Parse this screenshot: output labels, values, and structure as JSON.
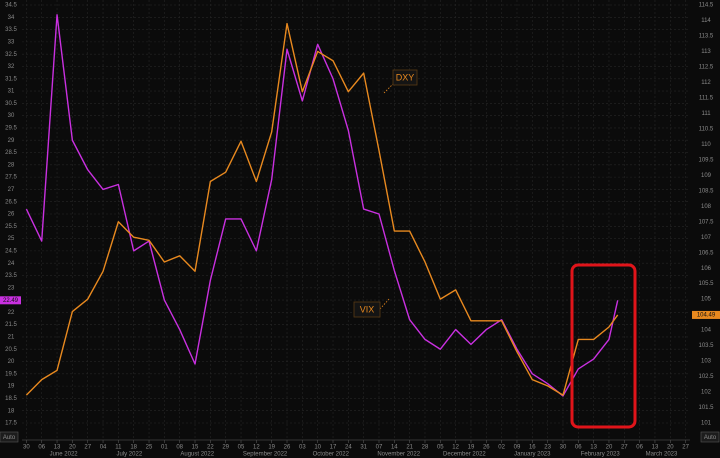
{
  "chart_data": {
    "type": "line",
    "xlim": [
      "2022-05-28",
      "2023-03-29"
    ],
    "ylim": [
      17.5,
      34.5
    ],
    "y2lim": [
      101,
      114.5
    ],
    "yticks": [
      17.5,
      18,
      18.5,
      19,
      19.5,
      20,
      20.5,
      21,
      21.5,
      22,
      22.5,
      23,
      23.5,
      24,
      24.5,
      25,
      25.5,
      26,
      26.5,
      27,
      27.5,
      28,
      28.5,
      29,
      29.5,
      30,
      30.5,
      31,
      31.5,
      32,
      32.5,
      33,
      33.5,
      34,
      34.5
    ],
    "y2ticks": [
      101,
      101.5,
      102,
      102.5,
      103,
      103.5,
      104,
      104.5,
      105,
      105.5,
      106,
      106.5,
      107,
      107.5,
      108,
      108.5,
      109,
      109.5,
      110,
      110.5,
      111,
      111.5,
      112,
      112.5,
      113,
      113.5,
      114,
      114.5
    ],
    "xticks": [
      {
        "value": "2022-05-30",
        "label": "30"
      },
      {
        "value": "2022-06-06",
        "label": "06"
      },
      {
        "value": "2022-06-13",
        "label": "13"
      },
      {
        "value": "2022-06-20",
        "label": "20"
      },
      {
        "value": "2022-06-27",
        "label": "27"
      },
      {
        "value": "2022-07-04",
        "label": "04"
      },
      {
        "value": "2022-07-11",
        "label": "11"
      },
      {
        "value": "2022-07-18",
        "label": "18"
      },
      {
        "value": "2022-07-25",
        "label": "25"
      },
      {
        "value": "2022-08-01",
        "label": "01"
      },
      {
        "value": "2022-08-08",
        "label": "08"
      },
      {
        "value": "2022-08-15",
        "label": "15"
      },
      {
        "value": "2022-08-22",
        "label": "22"
      },
      {
        "value": "2022-08-29",
        "label": "29"
      },
      {
        "value": "2022-09-05",
        "label": "05"
      },
      {
        "value": "2022-09-12",
        "label": "12"
      },
      {
        "value": "2022-09-19",
        "label": "19"
      },
      {
        "value": "2022-09-26",
        "label": "26"
      },
      {
        "value": "2022-10-03",
        "label": "03"
      },
      {
        "value": "2022-10-10",
        "label": "10"
      },
      {
        "value": "2022-10-17",
        "label": "17"
      },
      {
        "value": "2022-10-24",
        "label": "24"
      },
      {
        "value": "2022-10-31",
        "label": "31"
      },
      {
        "value": "2022-11-07",
        "label": "07"
      },
      {
        "value": "2022-11-14",
        "label": "14"
      },
      {
        "value": "2022-11-21",
        "label": "21"
      },
      {
        "value": "2022-11-28",
        "label": "28"
      },
      {
        "value": "2022-12-05",
        "label": "05"
      },
      {
        "value": "2022-12-12",
        "label": "12"
      },
      {
        "value": "2022-12-19",
        "label": "19"
      },
      {
        "value": "2022-12-26",
        "label": "26"
      },
      {
        "value": "2023-01-02",
        "label": "02"
      },
      {
        "value": "2023-01-09",
        "label": "09"
      },
      {
        "value": "2023-01-16",
        "label": "16"
      },
      {
        "value": "2023-01-23",
        "label": "23"
      },
      {
        "value": "2023-01-30",
        "label": "30"
      },
      {
        "value": "2023-02-06",
        "label": "06"
      },
      {
        "value": "2023-02-13",
        "label": "13"
      },
      {
        "value": "2023-02-20",
        "label": "20"
      },
      {
        "value": "2023-02-27",
        "label": "27"
      },
      {
        "value": "2023-03-06",
        "label": "06"
      },
      {
        "value": "2023-03-13",
        "label": "13"
      },
      {
        "value": "2023-03-20",
        "label": "20"
      },
      {
        "value": "2023-03-27",
        "label": "27"
      }
    ],
    "month_labels": [
      {
        "value": "2022-06-01",
        "label": "June 2022"
      },
      {
        "value": "2022-07-01",
        "label": "July 2022"
      },
      {
        "value": "2022-08-01",
        "label": "August 2022"
      },
      {
        "value": "2022-09-01",
        "label": "September 2022"
      },
      {
        "value": "2022-10-01",
        "label": "October 2022"
      },
      {
        "value": "2022-11-01",
        "label": "November 2022"
      },
      {
        "value": "2022-12-01",
        "label": "December 2022"
      },
      {
        "value": "2023-01-01",
        "label": "January 2023"
      },
      {
        "value": "2023-02-01",
        "label": "February 2023"
      },
      {
        "value": "2023-03-01",
        "label": "March 2023"
      }
    ],
    "x": [
      "2022-05-30",
      "2022-06-06",
      "2022-06-13",
      "2022-06-20",
      "2022-06-27",
      "2022-07-04",
      "2022-07-11",
      "2022-07-18",
      "2022-07-25",
      "2022-08-01",
      "2022-08-08",
      "2022-08-15",
      "2022-08-22",
      "2022-08-29",
      "2022-09-05",
      "2022-09-12",
      "2022-09-19",
      "2022-09-26",
      "2022-10-03",
      "2022-10-10",
      "2022-10-17",
      "2022-10-24",
      "2022-10-31",
      "2022-11-07",
      "2022-11-14",
      "2022-11-21",
      "2022-11-28",
      "2022-12-05",
      "2022-12-12",
      "2022-12-19",
      "2022-12-26",
      "2023-01-02",
      "2023-01-09",
      "2023-01-16",
      "2023-01-23",
      "2023-01-30",
      "2023-02-06",
      "2023-02-13",
      "2023-02-20",
      "2023-02-24"
    ],
    "series": [
      {
        "name": "VIX",
        "color": "#c930e0",
        "axis": "y",
        "values": [
          26.2,
          24.9,
          34.1,
          29.0,
          27.8,
          27.0,
          27.2,
          24.5,
          24.9,
          22.5,
          21.3,
          19.9,
          23.3,
          25.8,
          25.8,
          24.5,
          27.4,
          32.7,
          30.6,
          32.9,
          31.5,
          29.4,
          26.2,
          26.0,
          23.7,
          21.7,
          20.9,
          20.5,
          21.3,
          20.7,
          21.3,
          21.7,
          20.5,
          19.5,
          19.1,
          18.6,
          19.7,
          20.1,
          20.9,
          22.49
        ]
      },
      {
        "name": "DXY",
        "color": "#e8891f",
        "axis": "y2",
        "values": [
          101.9,
          102.4,
          102.7,
          104.6,
          105.0,
          105.9,
          107.5,
          107.0,
          106.9,
          106.2,
          106.4,
          105.9,
          108.8,
          109.1,
          110.1,
          108.8,
          110.4,
          113.9,
          111.7,
          113.0,
          112.7,
          111.7,
          112.3,
          109.8,
          107.2,
          107.2,
          106.2,
          105.0,
          105.3,
          104.3,
          104.3,
          104.3,
          103.3,
          102.4,
          102.2,
          101.9,
          103.7,
          103.7,
          104.1,
          104.49
        ]
      }
    ],
    "grid": true,
    "axis_buttons": [
      "Auto",
      "Auto"
    ]
  }
}
